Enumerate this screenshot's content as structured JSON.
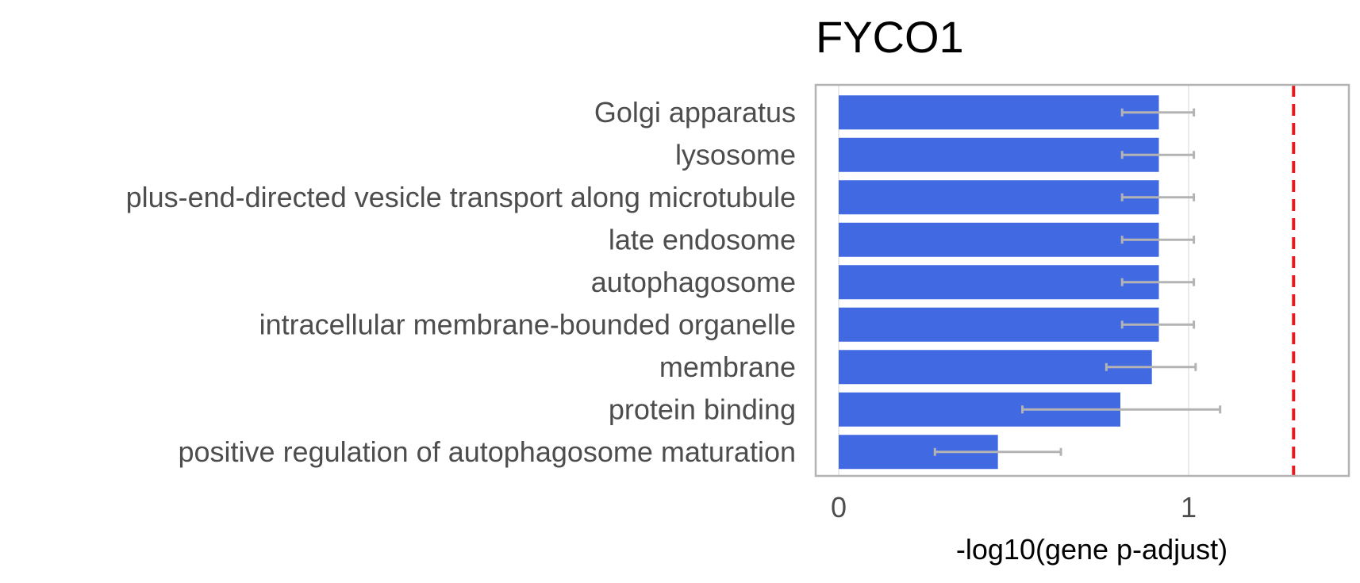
{
  "chart_data": {
    "type": "bar",
    "orientation": "horizontal",
    "title": "FYCO1",
    "xlabel": "-log10(gene p-adjust)",
    "ylabel": "",
    "xlim": [
      -0.07,
      1.46
    ],
    "xticks": [
      0,
      1
    ],
    "grid": true,
    "threshold_line": {
      "x": 1.3,
      "color": "#e41a1c",
      "style": "dashed"
    },
    "categories": [
      "Golgi apparatus",
      "lysosome",
      "plus-end-directed vesicle transport along microtubule",
      "late endosome",
      "autophagosome",
      "intracellular membrane-bounded organelle",
      "membrane",
      "protein binding",
      "positive regulation of autophagosome maturation"
    ],
    "values": [
      0.915,
      0.915,
      0.915,
      0.915,
      0.915,
      0.915,
      0.895,
      0.805,
      0.455
    ],
    "error_low": [
      0.81,
      0.81,
      0.81,
      0.81,
      0.81,
      0.81,
      0.765,
      0.525,
      0.275
    ],
    "error_high": [
      1.015,
      1.015,
      1.015,
      1.015,
      1.015,
      1.015,
      1.02,
      1.09,
      0.635
    ],
    "bar_color": "#4169e1",
    "error_color": "#b3b3b3",
    "axis_color": "#b3b3b3",
    "text_color": "#4d4d4d"
  }
}
